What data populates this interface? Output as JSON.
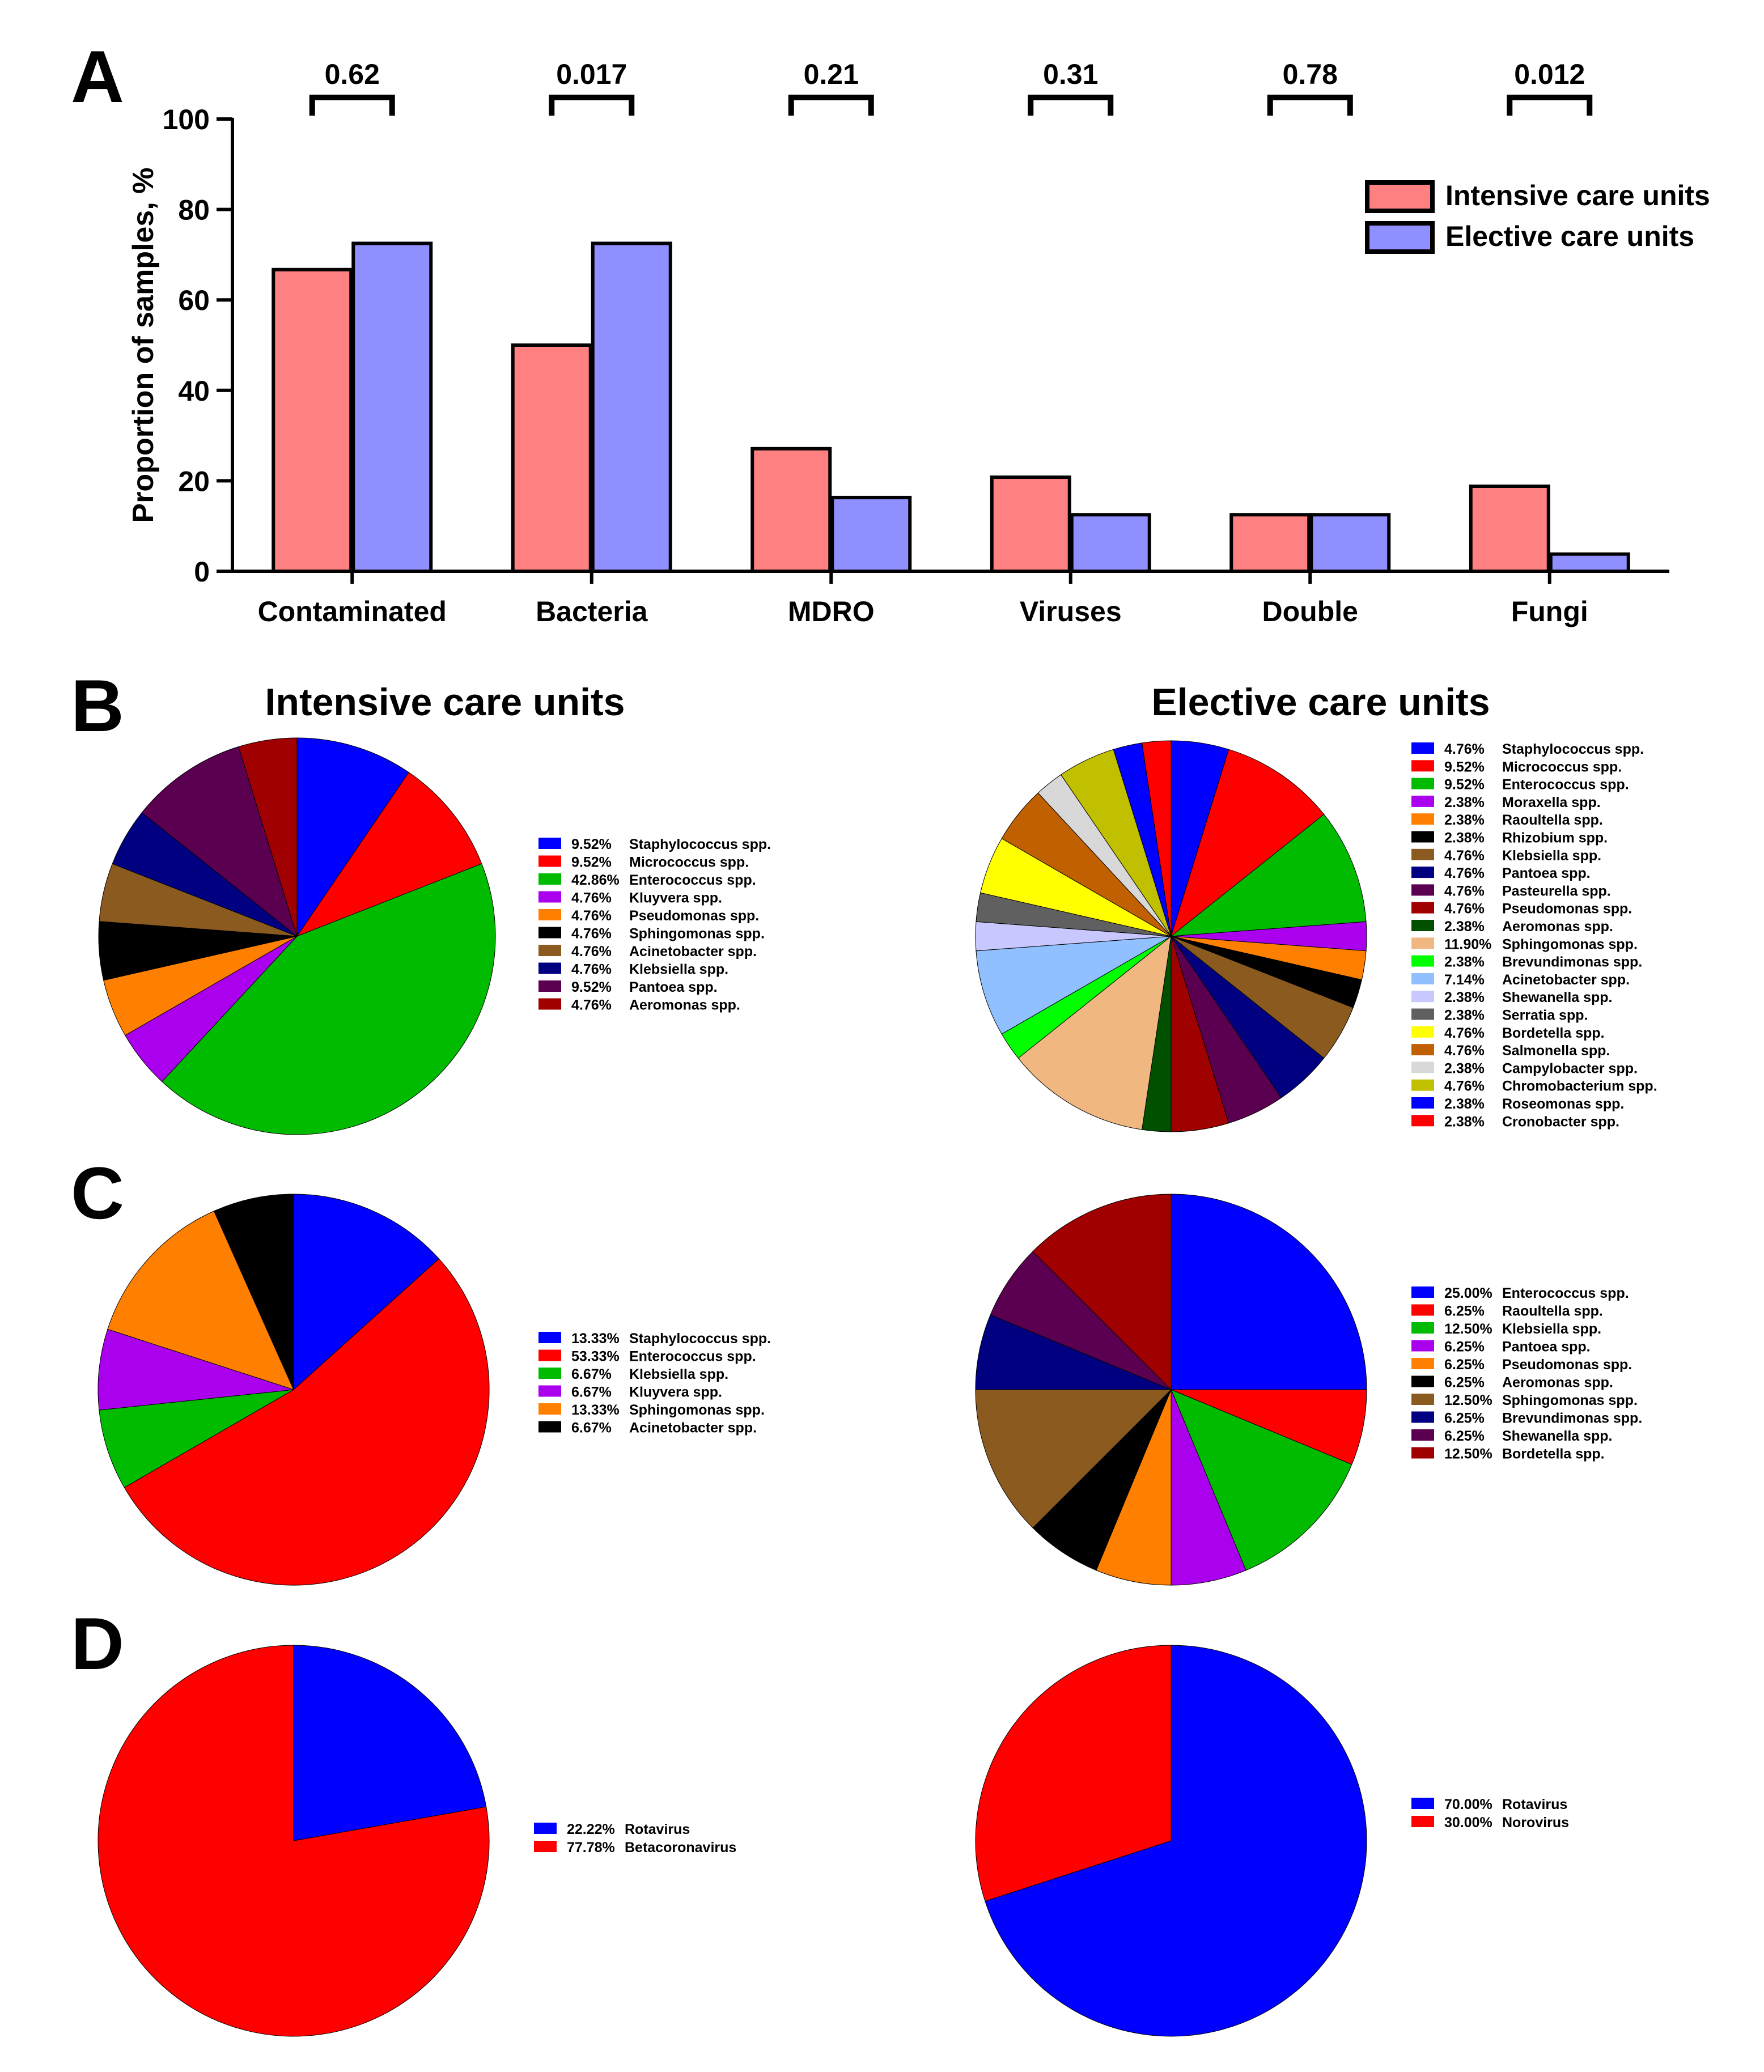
{
  "panel_labels": {
    "a": "A",
    "b": "B",
    "c": "C",
    "d": "D"
  },
  "column_titles": {
    "icu": "Intensive care units",
    "ecu": "Elective care units"
  },
  "chart_data": [
    {
      "id": "A",
      "type": "bar",
      "title": "",
      "xlabel": "",
      "ylabel": "Proportion of samples, %",
      "ylim": [
        0,
        100
      ],
      "yticks": [
        "0",
        "20",
        "40",
        "60",
        "80",
        "100"
      ],
      "categories": [
        "Contaminated",
        "Bacteria",
        "MDRO",
        "Viruses",
        "Double",
        "Fungi"
      ],
      "series": [
        {
          "name": "Intensive care units",
          "color": "#ff8080",
          "values": [
            66.7,
            50.0,
            27.1,
            20.8,
            12.5,
            18.8
          ]
        },
        {
          "name": "Elective care units",
          "color": "#8f8fff",
          "values": [
            72.5,
            72.5,
            16.3,
            12.5,
            12.5,
            3.8
          ]
        }
      ],
      "p_values": [
        "0.62",
        "0.017",
        "0.21",
        "0.31",
        "0.78",
        "0.012"
      ],
      "legend_position": "top-right"
    },
    {
      "id": "B-icu",
      "type": "pie",
      "title": "Intensive care units",
      "slices": [
        {
          "pct": "9.52%",
          "value": 9.52,
          "label": "Staphylococcus spp.",
          "color": "#0000ff"
        },
        {
          "pct": "9.52%",
          "value": 9.52,
          "label": "Micrococcus spp.",
          "color": "#ff0000"
        },
        {
          "pct": "42.86%",
          "value": 42.86,
          "label": "Enterococcus spp.",
          "color": "#00bb00"
        },
        {
          "pct": "4.76%",
          "value": 4.76,
          "label": "Kluyvera spp.",
          "color": "#aa00ee"
        },
        {
          "pct": "4.76%",
          "value": 4.76,
          "label": "Pseudomonas spp.",
          "color": "#ff8000"
        },
        {
          "pct": "4.76%",
          "value": 4.76,
          "label": "Sphingomonas spp.",
          "color": "#000000"
        },
        {
          "pct": "4.76%",
          "value": 4.76,
          "label": "Acinetobacter spp.",
          "color": "#8b5a1e"
        },
        {
          "pct": "4.76%",
          "value": 4.76,
          "label": "Klebsiella spp.",
          "color": "#000080"
        },
        {
          "pct": "9.52%",
          "value": 9.52,
          "label": "Pantoea spp.",
          "color": "#5b0050"
        },
        {
          "pct": "4.76%",
          "value": 4.76,
          "label": "Aeromonas spp.",
          "color": "#a00000"
        }
      ]
    },
    {
      "id": "B-ecu",
      "type": "pie",
      "title": "Elective care units",
      "slices": [
        {
          "pct": "4.76%",
          "value": 4.76,
          "label": "Staphylococcus spp.",
          "color": "#0000ff"
        },
        {
          "pct": "9.52%",
          "value": 9.52,
          "label": "Micrococcus spp.",
          "color": "#ff0000"
        },
        {
          "pct": "9.52%",
          "value": 9.52,
          "label": "Enterococcus spp.",
          "color": "#00bb00"
        },
        {
          "pct": "2.38%",
          "value": 2.38,
          "label": "Moraxella spp.",
          "color": "#aa00ee"
        },
        {
          "pct": "2.38%",
          "value": 2.38,
          "label": "Raoultella spp.",
          "color": "#ff8000"
        },
        {
          "pct": "2.38%",
          "value": 2.38,
          "label": "Rhizobium spp.",
          "color": "#000000"
        },
        {
          "pct": "4.76%",
          "value": 4.76,
          "label": "Klebsiella spp.",
          "color": "#8b5a1e"
        },
        {
          "pct": "4.76%",
          "value": 4.76,
          "label": "Pantoea spp.",
          "color": "#000080"
        },
        {
          "pct": "4.76%",
          "value": 4.76,
          "label": "Pasteurella spp.",
          "color": "#5b0050"
        },
        {
          "pct": "4.76%",
          "value": 4.76,
          "label": "Pseudomonas spp.",
          "color": "#a00000"
        },
        {
          "pct": "2.38%",
          "value": 2.38,
          "label": "Aeromonas spp.",
          "color": "#005000"
        },
        {
          "pct": "11.90%",
          "value": 11.9,
          "label": "Sphingomonas spp.",
          "color": "#f0b880"
        },
        {
          "pct": "2.38%",
          "value": 2.38,
          "label": "Brevundimonas spp.",
          "color": "#00ff00"
        },
        {
          "pct": "7.14%",
          "value": 7.14,
          "label": "Acinetobacter spp.",
          "color": "#90c0ff"
        },
        {
          "pct": "2.38%",
          "value": 2.38,
          "label": "Shewanella spp.",
          "color": "#c8c8ff"
        },
        {
          "pct": "2.38%",
          "value": 2.38,
          "label": "Serratia spp.",
          "color": "#606060"
        },
        {
          "pct": "4.76%",
          "value": 4.76,
          "label": "Bordetella spp.",
          "color": "#ffff00"
        },
        {
          "pct": "4.76%",
          "value": 4.76,
          "label": "Salmonella spp.",
          "color": "#c06000"
        },
        {
          "pct": "2.38%",
          "value": 2.38,
          "label": "Campylobacter spp.",
          "color": "#d8d8d8"
        },
        {
          "pct": "4.76%",
          "value": 4.76,
          "label": "Chromobacterium spp.",
          "color": "#c0c000"
        },
        {
          "pct": "2.38%",
          "value": 2.38,
          "label": "Roseomonas spp.",
          "color": "#0000ff"
        },
        {
          "pct": "2.38%",
          "value": 2.38,
          "label": "Cronobacter spp.",
          "color": "#ff0000"
        }
      ]
    },
    {
      "id": "C-icu",
      "type": "pie",
      "title": "",
      "slices": [
        {
          "pct": "13.33%",
          "value": 13.33,
          "label": "Staphylococcus spp.",
          "color": "#0000ff"
        },
        {
          "pct": "53.33%",
          "value": 53.33,
          "label": "Enterococcus spp.",
          "color": "#ff0000"
        },
        {
          "pct": "6.67%",
          "value": 6.67,
          "label": "Klebsiella spp.",
          "color": "#00bb00"
        },
        {
          "pct": "6.67%",
          "value": 6.67,
          "label": "Kluyvera spp.",
          "color": "#aa00ee"
        },
        {
          "pct": "13.33%",
          "value": 13.33,
          "label": "Sphingomonas spp.",
          "color": "#ff8000"
        },
        {
          "pct": "6.67%",
          "value": 6.67,
          "label": "Acinetobacter spp.",
          "color": "#000000"
        }
      ]
    },
    {
      "id": "C-ecu",
      "type": "pie",
      "title": "",
      "slices": [
        {
          "pct": "25.00%",
          "value": 25.0,
          "label": "Enterococcus spp.",
          "color": "#0000ff"
        },
        {
          "pct": "6.25%",
          "value": 6.25,
          "label": "Raoultella spp.",
          "color": "#ff0000"
        },
        {
          "pct": "12.50%",
          "value": 12.5,
          "label": "Klebsiella spp.",
          "color": "#00bb00"
        },
        {
          "pct": "6.25%",
          "value": 6.25,
          "label": "Pantoea spp.",
          "color": "#aa00ee"
        },
        {
          "pct": "6.25%",
          "value": 6.25,
          "label": "Pseudomonas spp.",
          "color": "#ff8000"
        },
        {
          "pct": "6.25%",
          "value": 6.25,
          "label": "Aeromonas spp.",
          "color": "#000000"
        },
        {
          "pct": "12.50%",
          "value": 12.5,
          "label": "Sphingomonas spp.",
          "color": "#8b5a1e"
        },
        {
          "pct": "6.25%",
          "value": 6.25,
          "label": "Brevundimonas spp.",
          "color": "#000080"
        },
        {
          "pct": "6.25%",
          "value": 6.25,
          "label": "Shewanella spp.",
          "color": "#5b0050"
        },
        {
          "pct": "12.50%",
          "value": 12.5,
          "label": "Bordetella spp.",
          "color": "#a00000"
        }
      ]
    },
    {
      "id": "D-icu",
      "type": "pie",
      "title": "",
      "slices": [
        {
          "pct": "22.22%",
          "value": 22.22,
          "label": "Rotavirus",
          "color": "#0000ff"
        },
        {
          "pct": "77.78%",
          "value": 77.78,
          "label": "Betacoronavirus",
          "color": "#ff0000"
        }
      ]
    },
    {
      "id": "D-ecu",
      "type": "pie",
      "title": "",
      "slices": [
        {
          "pct": "70.00%",
          "value": 70.0,
          "label": "Rotavirus",
          "color": "#0000ff"
        },
        {
          "pct": "30.00%",
          "value": 30.0,
          "label": "Norovirus",
          "color": "#ff0000"
        }
      ]
    }
  ]
}
